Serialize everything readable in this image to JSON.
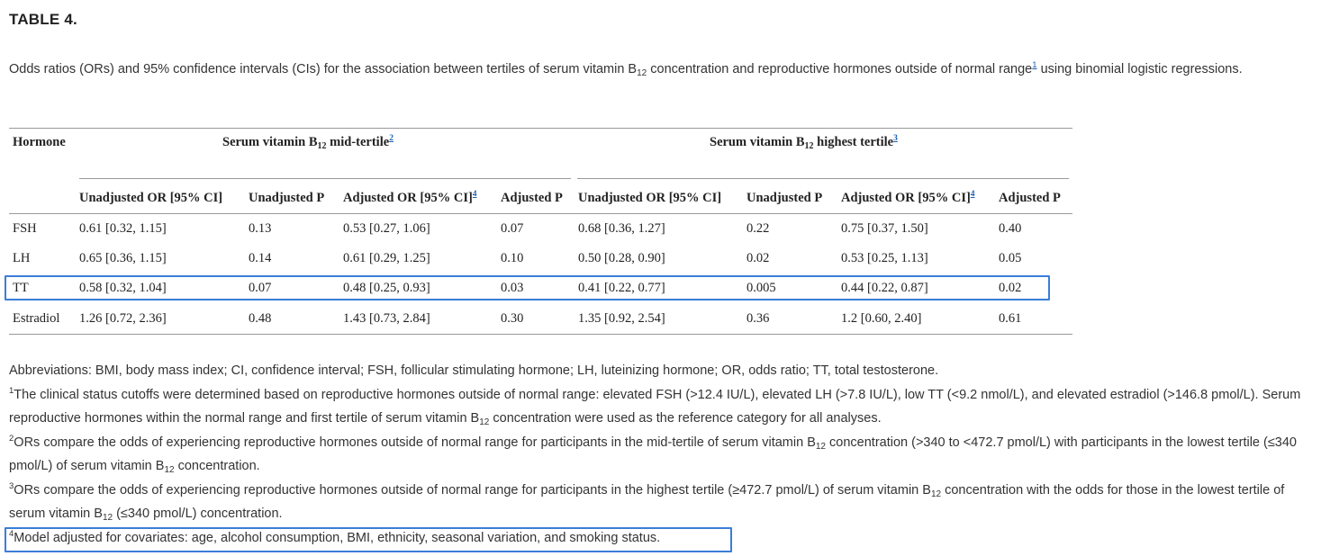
{
  "table_label": "TABLE 4.",
  "caption": {
    "part1": "Odds ratios (ORs) and 95% confidence intervals (CIs) for the association between tertiles of serum vitamin B",
    "sub": "12",
    "part2": " concentration and reproductive hormones outside of normal range",
    "ref": "1",
    "part3": " using binomial logistic regressions."
  },
  "header": {
    "hormone": "Hormone",
    "mid": {
      "pre": "Serum vitamin B",
      "sub": "12",
      "post": " mid-tertile",
      "ref": "2"
    },
    "high": {
      "pre": "Serum vitamin B",
      "sub": "12",
      "post": " highest tertile",
      "ref": "3"
    },
    "cols": [
      "Unadjusted OR [95% CI]",
      "Unadjusted P",
      "Adjusted OR [95% CI]",
      "Adjusted P",
      "Unadjusted OR [95% CI]",
      "Unadjusted P",
      "Adjusted OR [95% CI]",
      "Adjusted P"
    ],
    "adj_ref": "4"
  },
  "rows": [
    {
      "hormone": "FSH",
      "v": [
        "0.61 [0.32, 1.15]",
        "0.13",
        "0.53 [0.27, 1.06]",
        "0.07",
        "0.68 [0.36, 1.27]",
        "0.22",
        "0.75 [0.37, 1.50]",
        "0.40"
      ]
    },
    {
      "hormone": "LH",
      "v": [
        "0.65 [0.36, 1.15]",
        "0.14",
        "0.61 [0.29, 1.25]",
        "0.10",
        "0.50 [0.28, 0.90]",
        "0.02",
        "0.53 [0.25, 1.13]",
        "0.05"
      ]
    },
    {
      "hormone": "TT",
      "v": [
        "0.58 [0.32, 1.04]",
        "0.07",
        "0.48 [0.25, 0.93]",
        "0.03",
        "0.41 [0.22, 0.77]",
        "0.005",
        "0.44 [0.22, 0.87]",
        "0.02"
      ]
    },
    {
      "hormone": "Estradiol",
      "v": [
        "1.26 [0.72, 2.36]",
        "0.48",
        "1.43 [0.73, 2.84]",
        "0.30",
        "1.35 [0.92, 2.54]",
        "0.36",
        "1.2 [0.60, 2.40]",
        "0.61"
      ]
    }
  ],
  "footnotes": {
    "abbrev": "Abbreviations: BMI, body mass index; CI, confidence interval; FSH, follicular stimulating hormone; LH, luteinizing hormone; OR, odds ratio; TT, total testosterone.",
    "fn1": {
      "mark": "1",
      "a": "The clinical status cutoffs were determined based on reproductive hormones outside of normal range: elevated FSH (>12.4 IU/L), elevated LH (>7.8 IU/L), low TT (<9.2 nmol/L), and elevated estradiol (>146.8 pmol/L). Serum reproductive hormones within the normal range and first tertile of serum vitamin B",
      "sub": "12",
      "b": " concentration were used as the reference category for all analyses."
    },
    "fn2": {
      "mark": "2",
      "a": "ORs compare the odds of experiencing reproductive hormones outside of normal range for participants in the mid-tertile of serum vitamin B",
      "sub1": "12",
      "b": " concentration (>340 to <472.7 pmol/L) with participants in the lowest tertile (≤340 pmol/L) of serum vitamin B",
      "sub2": "12",
      "c": " concentration."
    },
    "fn3": {
      "mark": "3",
      "a": "ORs compare the odds of experiencing reproductive hormones outside of normal range for participants in the highest tertile (≥472.7 pmol/L) of serum vitamin B",
      "sub1": "12",
      "b": " concentration with the odds for those in the lowest tertile of serum vitamin B",
      "sub2": "12",
      "c": " (≤340 pmol/L) concentration."
    },
    "fn4": {
      "mark": "4",
      "text": "Model adjusted for covariates: age, alcohol consumption, BMI, ethnicity, seasonal variation, and smoking status."
    }
  },
  "colors": {
    "highlight": "#3b7dd8",
    "link": "#1a5fb4"
  }
}
